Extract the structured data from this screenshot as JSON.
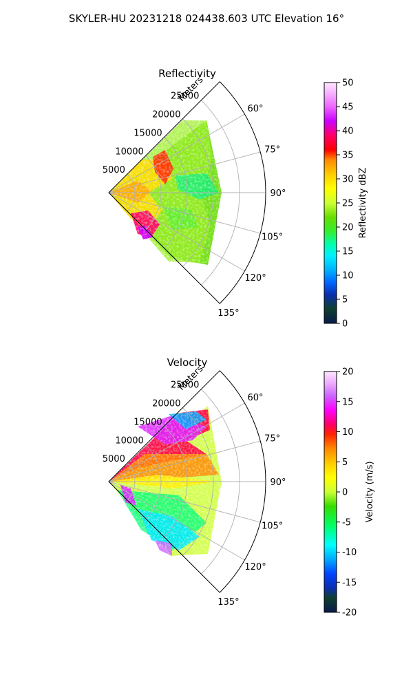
{
  "suptitle": "SKYLER-HU  20231218  024438.603 UTC Elevation 16°",
  "chart_data": [
    {
      "type": "heatmap",
      "projection": "polar-sector",
      "title": "Reflectivity",
      "radial_label": "Meters",
      "range_ticks": [
        5000,
        10000,
        15000,
        20000,
        25000
      ],
      "range_tick_labels": [
        "5000",
        "10000",
        "15000",
        "20000",
        "25000"
      ],
      "rmax": 30000,
      "azimuth_ticks": [
        60,
        75,
        90,
        105,
        120,
        135
      ],
      "azimuth_tick_labels": [
        "60°",
        "75°",
        "90°",
        "105°",
        "120°",
        "135°"
      ],
      "sector_deg": [
        45,
        135
      ],
      "colorbar": {
        "label": "Reflectivity dBZ",
        "range": [
          0,
          50
        ],
        "ticks": [
          "0",
          "5",
          "10",
          "15",
          "20",
          "25",
          "30",
          "35",
          "40",
          "45",
          "50"
        ]
      }
    },
    {
      "type": "heatmap",
      "projection": "polar-sector",
      "title": "Velocity",
      "radial_label": "Meters",
      "range_ticks": [
        5000,
        10000,
        15000,
        20000,
        25000
      ],
      "range_tick_labels": [
        "5000",
        "10000",
        "15000",
        "20000",
        "25000"
      ],
      "rmax": 30000,
      "azimuth_ticks": [
        60,
        75,
        90,
        105,
        120,
        135
      ],
      "azimuth_tick_labels": [
        "60°",
        "75°",
        "90°",
        "105°",
        "120°",
        "135°"
      ],
      "sector_deg": [
        45,
        135
      ],
      "colorbar": {
        "label": "Velocity (m/s)",
        "range": [
          -20,
          20
        ],
        "ticks": [
          "-20",
          "-15",
          "-10",
          "-5",
          "0",
          "5",
          "10",
          "15",
          "20"
        ]
      }
    }
  ]
}
